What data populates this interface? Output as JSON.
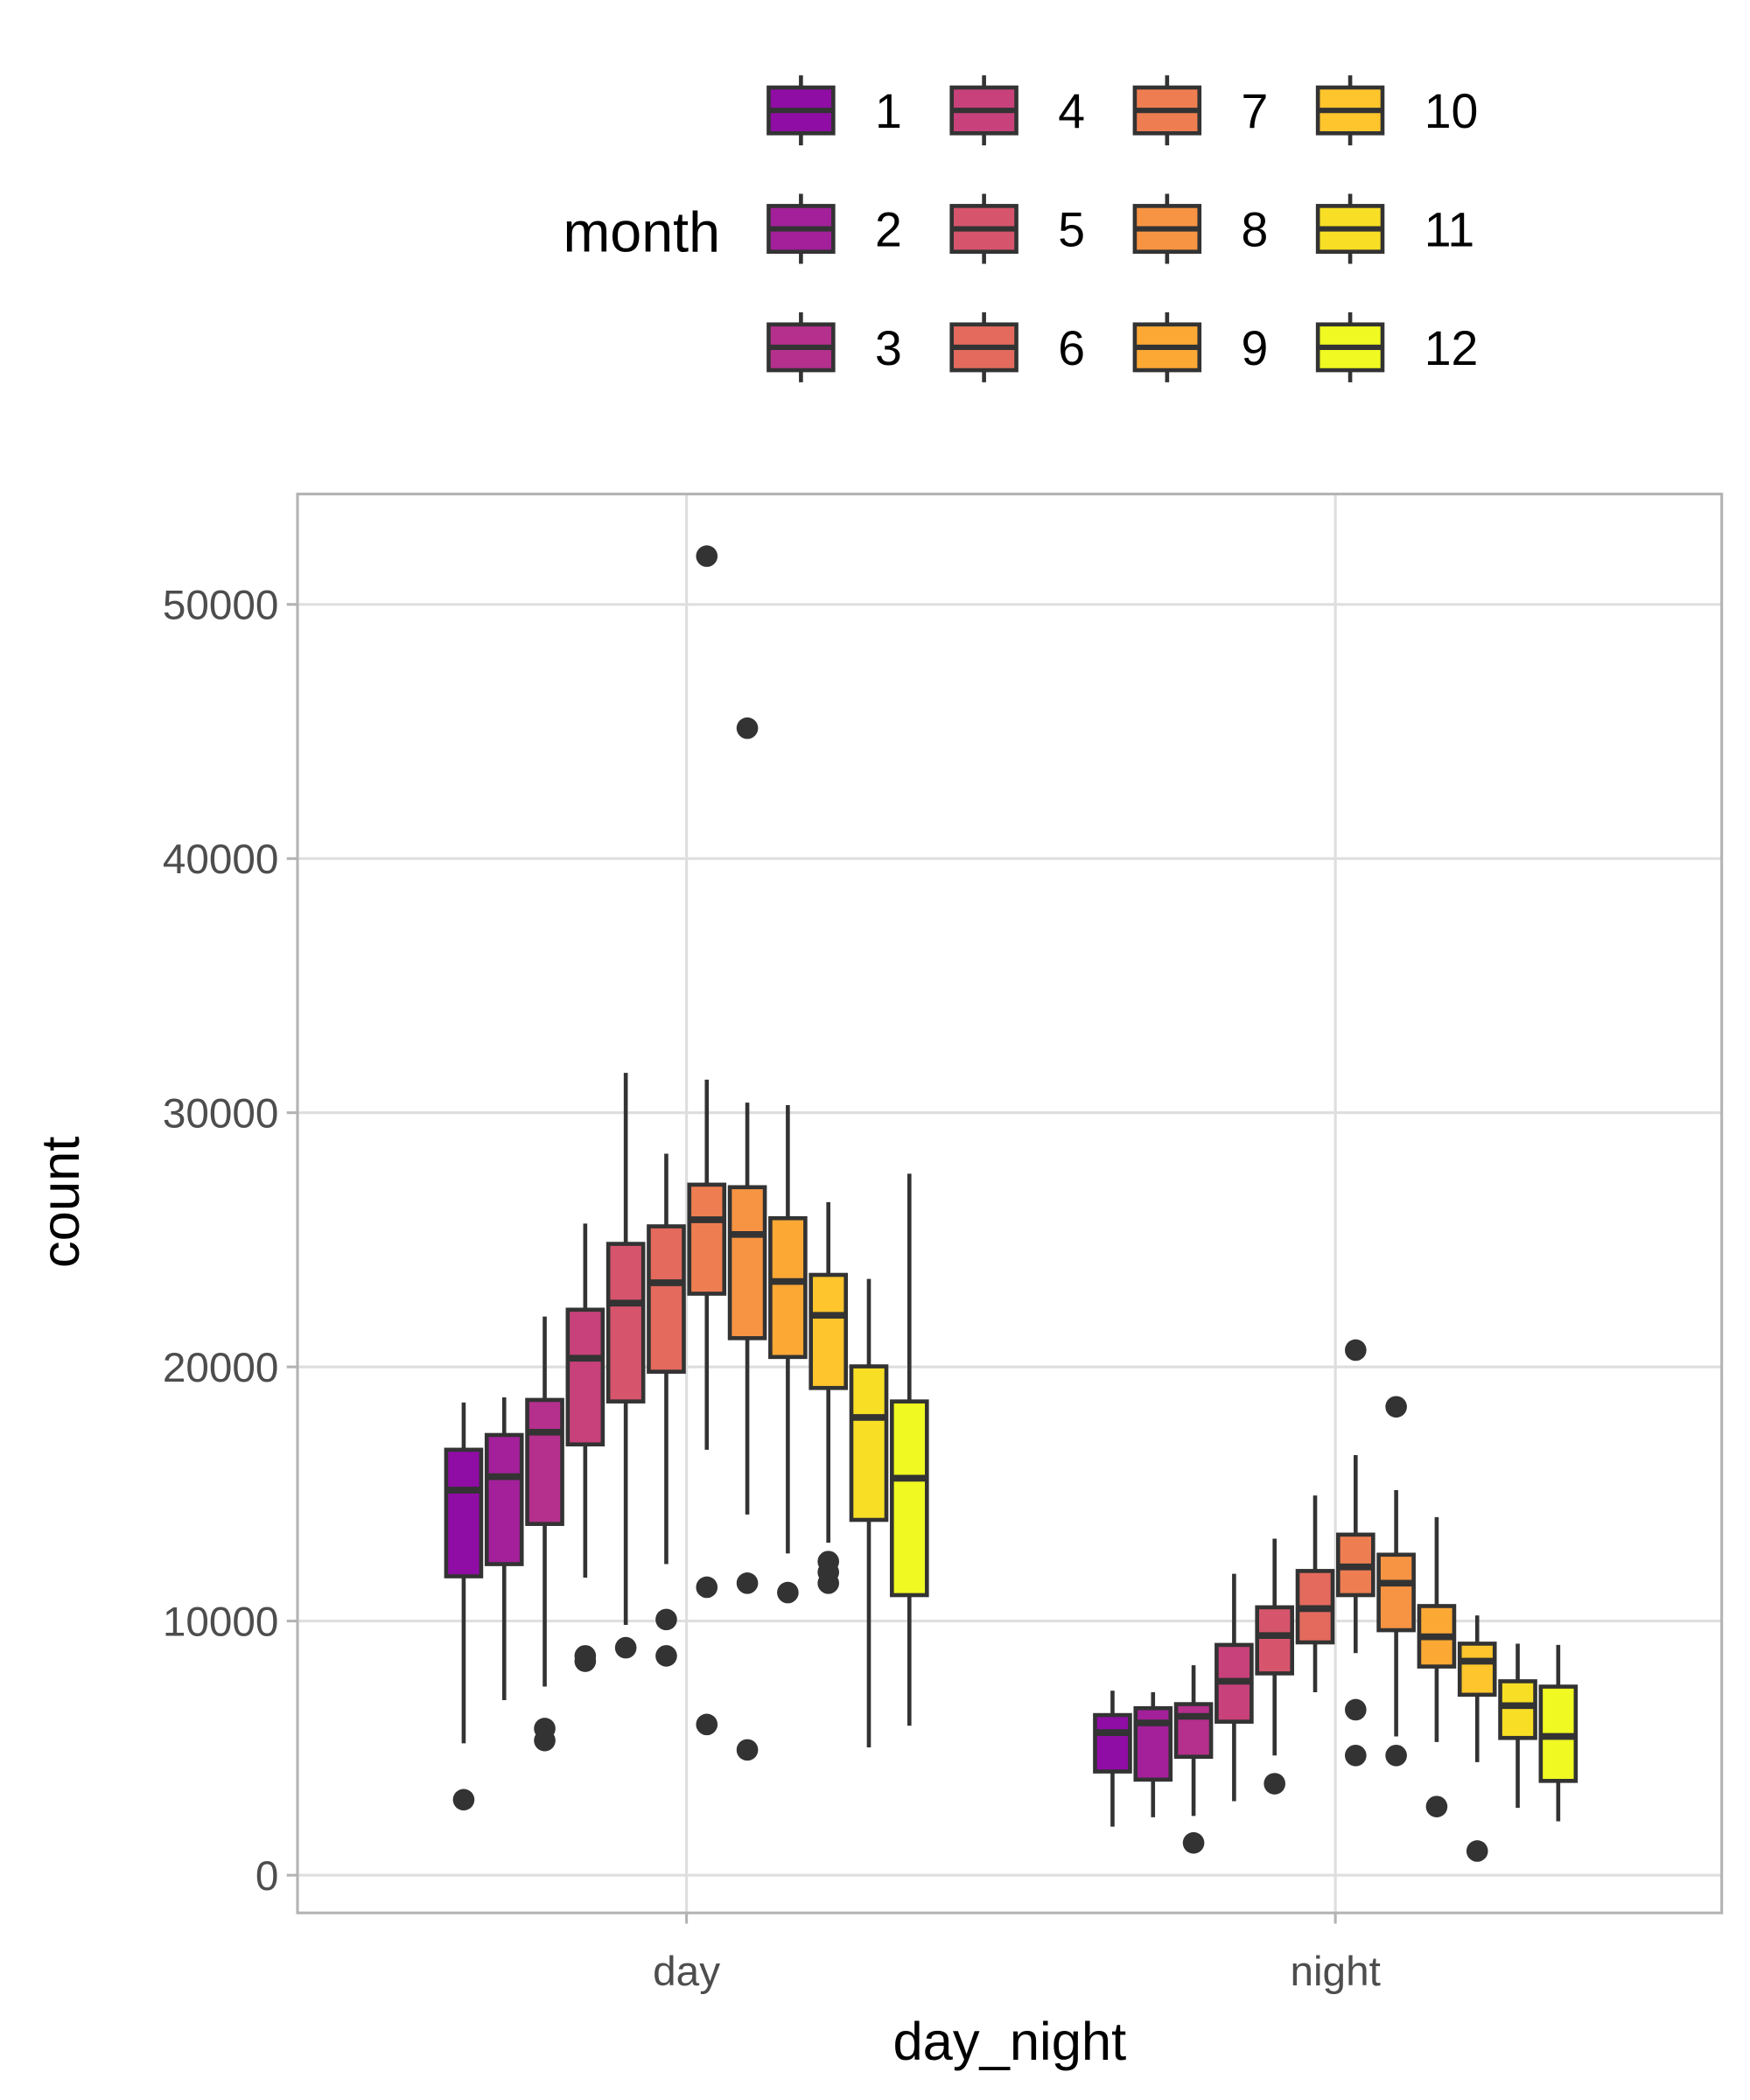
{
  "chart_data": {
    "type": "boxplot",
    "xlabel": "day_night",
    "ylabel": "count",
    "categories": [
      "day",
      "night"
    ],
    "ylim": [
      -1500,
      54300
    ],
    "yticks": [
      0,
      10000,
      20000,
      30000,
      40000,
      50000
    ],
    "grid": true,
    "legend": {
      "title": "month",
      "placement": "top",
      "entries": [
        "1",
        "2",
        "3",
        "4",
        "5",
        "6",
        "7",
        "8",
        "9",
        "10",
        "11",
        "12"
      ]
    },
    "colors": [
      "#8f0da4",
      "#a3209a",
      "#b52f8c",
      "#c8417a",
      "#d6556d",
      "#e36a5d",
      "#ee7e51",
      "#f79444",
      "#fca835",
      "#fec52c",
      "#f8df25",
      "#f0f921"
    ],
    "series": [
      {
        "category": "day",
        "boxes": [
          {
            "month": "1",
            "low": 5190,
            "q1": 11760,
            "median": 15150,
            "q3": 16740,
            "high": 18600,
            "outliers": [
              2970
            ]
          },
          {
            "month": "2",
            "low": 6890,
            "q1": 12240,
            "median": 15680,
            "q3": 17320,
            "high": 18800,
            "outliers": []
          },
          {
            "month": "3",
            "low": 7420,
            "q1": 13820,
            "median": 17430,
            "q3": 18700,
            "high": 21980,
            "outliers": [
              5770,
              5300
            ]
          },
          {
            "month": "4",
            "low": 11710,
            "q1": 16950,
            "median": 20340,
            "q3": 22250,
            "high": 25640,
            "outliers": [
              8630,
              8420
            ]
          },
          {
            "month": "5",
            "low": 9850,
            "q1": 18640,
            "median": 22510,
            "q3": 24840,
            "high": 31570,
            "outliers": [
              8950
            ]
          },
          {
            "month": "6",
            "low": 12240,
            "q1": 19810,
            "median": 23310,
            "q3": 25530,
            "high": 28390,
            "outliers": [
              10060,
              8630
            ]
          },
          {
            "month": "7",
            "low": 16740,
            "q1": 22880,
            "median": 25790,
            "q3": 27170,
            "high": 31300,
            "outliers": [
              51900,
              11330,
              5930
            ]
          },
          {
            "month": "8",
            "low": 14190,
            "q1": 21130,
            "median": 25210,
            "q3": 27070,
            "high": 30400,
            "outliers": [
              45130,
              11490,
              4930
            ]
          },
          {
            "month": "9",
            "low": 12660,
            "q1": 20390,
            "median": 23360,
            "q3": 25850,
            "high": 30300,
            "outliers": [
              11120
            ]
          },
          {
            "month": "10",
            "low": 13080,
            "q1": 19170,
            "median": 22030,
            "q3": 23620,
            "high": 26480,
            "outliers": [
              12340,
              11920,
              11490
            ]
          },
          {
            "month": "11",
            "low": 5030,
            "q1": 13980,
            "median": 18010,
            "q3": 20020,
            "high": 23460,
            "outliers": []
          },
          {
            "month": "12",
            "low": 5880,
            "q1": 11020,
            "median": 15620,
            "q3": 18640,
            "high": 27600,
            "outliers": []
          }
        ]
      },
      {
        "category": "night",
        "boxes": [
          {
            "month": "1",
            "low": 1910,
            "q1": 4080,
            "median": 5610,
            "q3": 6300,
            "high": 7260,
            "outliers": []
          },
          {
            "month": "2",
            "low": 2280,
            "q1": 3760,
            "median": 5990,
            "q3": 6570,
            "high": 7200,
            "outliers": []
          },
          {
            "month": "3",
            "low": 2330,
            "q1": 4660,
            "median": 6250,
            "q3": 6730,
            "high": 8260,
            "outliers": [
              1270
            ]
          },
          {
            "month": "4",
            "low": 2910,
            "q1": 6040,
            "median": 7630,
            "q3": 9060,
            "high": 11860,
            "outliers": []
          },
          {
            "month": "5",
            "low": 4710,
            "q1": 7940,
            "median": 9430,
            "q3": 10540,
            "high": 13240,
            "outliers": [
              3600
            ]
          },
          {
            "month": "6",
            "low": 7200,
            "q1": 9160,
            "median": 10490,
            "q3": 11970,
            "high": 14940,
            "outliers": []
          },
          {
            "month": "7",
            "low": 8740,
            "q1": 11020,
            "median": 12130,
            "q3": 13400,
            "high": 16530,
            "outliers": [
              20660,
              6510,
              4710
            ]
          },
          {
            "month": "8",
            "low": 5460,
            "q1": 9640,
            "median": 11490,
            "q3": 12610,
            "high": 15150,
            "outliers": [
              18430,
              4710
            ]
          },
          {
            "month": "9",
            "low": 5240,
            "q1": 8210,
            "median": 9380,
            "q3": 10590,
            "high": 14090,
            "outliers": [
              2700
            ]
          },
          {
            "month": "10",
            "low": 4450,
            "q1": 7100,
            "median": 8420,
            "q3": 9110,
            "high": 10220,
            "outliers": [
              950
            ]
          },
          {
            "month": "11",
            "low": 2650,
            "q1": 5400,
            "median": 6670,
            "q3": 7630,
            "high": 9110,
            "outliers": []
          },
          {
            "month": "12",
            "low": 2120,
            "q1": 3710,
            "median": 5460,
            "q3": 7420,
            "high": 9060,
            "outliers": []
          }
        ]
      }
    ]
  }
}
